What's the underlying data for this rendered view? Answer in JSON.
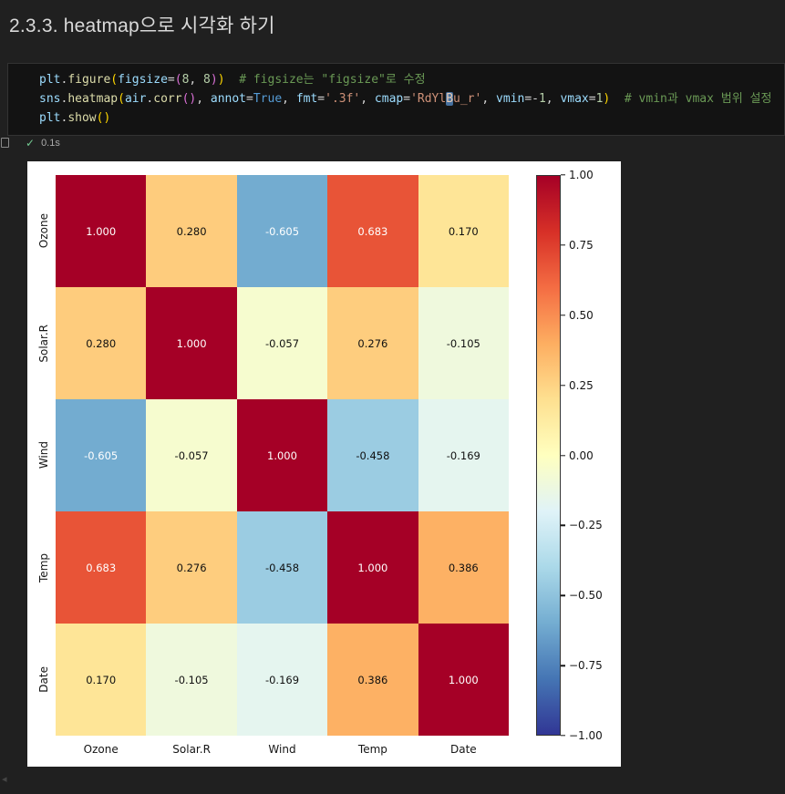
{
  "header": {
    "title": "2.3.3. heatmap으로 시각화 하기"
  },
  "cell": {
    "execution_check": "✓",
    "execution_time": "0.1s",
    "code_lines": [
      [
        [
          "plt",
          "var"
        ],
        [
          ".",
          "pun"
        ],
        [
          "figure",
          "fn"
        ],
        [
          "(",
          "b1"
        ],
        [
          "figsize",
          "param"
        ],
        [
          "=",
          "pun"
        ],
        [
          "(",
          "b2"
        ],
        [
          "8",
          "num"
        ],
        [
          ", ",
          "pun"
        ],
        [
          "8",
          "num"
        ],
        [
          ")",
          "b2"
        ],
        [
          ")",
          "b1"
        ],
        [
          "  ",
          "pun"
        ],
        [
          "# figsize는 \"figsize\"로 수정",
          "com"
        ]
      ],
      [
        [
          "sns",
          "var"
        ],
        [
          ".",
          "pun"
        ],
        [
          "heatmap",
          "fn"
        ],
        [
          "(",
          "b1"
        ],
        [
          "air",
          "var"
        ],
        [
          ".",
          "pun"
        ],
        [
          "corr",
          "fn"
        ],
        [
          "(",
          "b2"
        ],
        [
          ")",
          "b2"
        ],
        [
          ", ",
          "pun"
        ],
        [
          "annot",
          "param"
        ],
        [
          "=",
          "pun"
        ],
        [
          "True",
          "kw"
        ],
        [
          ", ",
          "pun"
        ],
        [
          "fmt",
          "param"
        ],
        [
          "=",
          "pun"
        ],
        [
          "'.3f'",
          "str"
        ],
        [
          ", ",
          "pun"
        ],
        [
          "cmap",
          "param"
        ],
        [
          "=",
          "pun"
        ],
        [
          "'RdYl",
          "str"
        ],
        [
          "B",
          "strhl"
        ],
        [
          "u_r'",
          "str"
        ],
        [
          ", ",
          "pun"
        ],
        [
          "vmin",
          "param"
        ],
        [
          "=",
          "pun"
        ],
        [
          "-",
          "pun"
        ],
        [
          "1",
          "num"
        ],
        [
          ", ",
          "pun"
        ],
        [
          "vmax",
          "param"
        ],
        [
          "=",
          "pun"
        ],
        [
          "1",
          "num"
        ],
        [
          ")",
          "b1"
        ],
        [
          "  ",
          "pun"
        ],
        [
          "# vmin과 vmax 범위 설정",
          "com"
        ]
      ],
      [
        [
          "plt",
          "var"
        ],
        [
          ".",
          "pun"
        ],
        [
          "show",
          "fn"
        ],
        [
          "(",
          "b1"
        ],
        [
          ")",
          "b1"
        ]
      ]
    ]
  },
  "chart_data": {
    "type": "heatmap",
    "title": "",
    "categories": [
      "Ozone",
      "Solar.R",
      "Wind",
      "Temp",
      "Date"
    ],
    "matrix": [
      [
        1.0,
        0.28,
        -0.605,
        0.683,
        0.17
      ],
      [
        0.28,
        1.0,
        -0.057,
        0.276,
        -0.105
      ],
      [
        -0.605,
        -0.057,
        1.0,
        -0.458,
        -0.169
      ],
      [
        0.683,
        0.276,
        -0.458,
        1.0,
        0.386
      ],
      [
        0.17,
        -0.105,
        -0.169,
        0.386,
        1.0
      ]
    ],
    "value_format": ".3f",
    "cmap": "RdYlBu_r",
    "vmin": -1,
    "vmax": 1,
    "figure_background": "#ffffff",
    "colormap_anchors": [
      "#313695",
      "#4575b4",
      "#74add1",
      "#abd9e9",
      "#e0f3f8",
      "#ffffbf",
      "#fee090",
      "#fdae61",
      "#f46d43",
      "#d73027",
      "#a50026"
    ],
    "colorbar_ticks": [
      "1.00",
      "0.75",
      "0.50",
      "0.25",
      "0.00",
      "−0.25",
      "−0.50",
      "−0.75",
      "−1.00"
    ],
    "colorbar_tick_values": [
      1,
      0.75,
      0.5,
      0.25,
      0,
      -0.25,
      -0.5,
      -0.75,
      -1
    ],
    "legend_position": "right",
    "grid": false
  }
}
